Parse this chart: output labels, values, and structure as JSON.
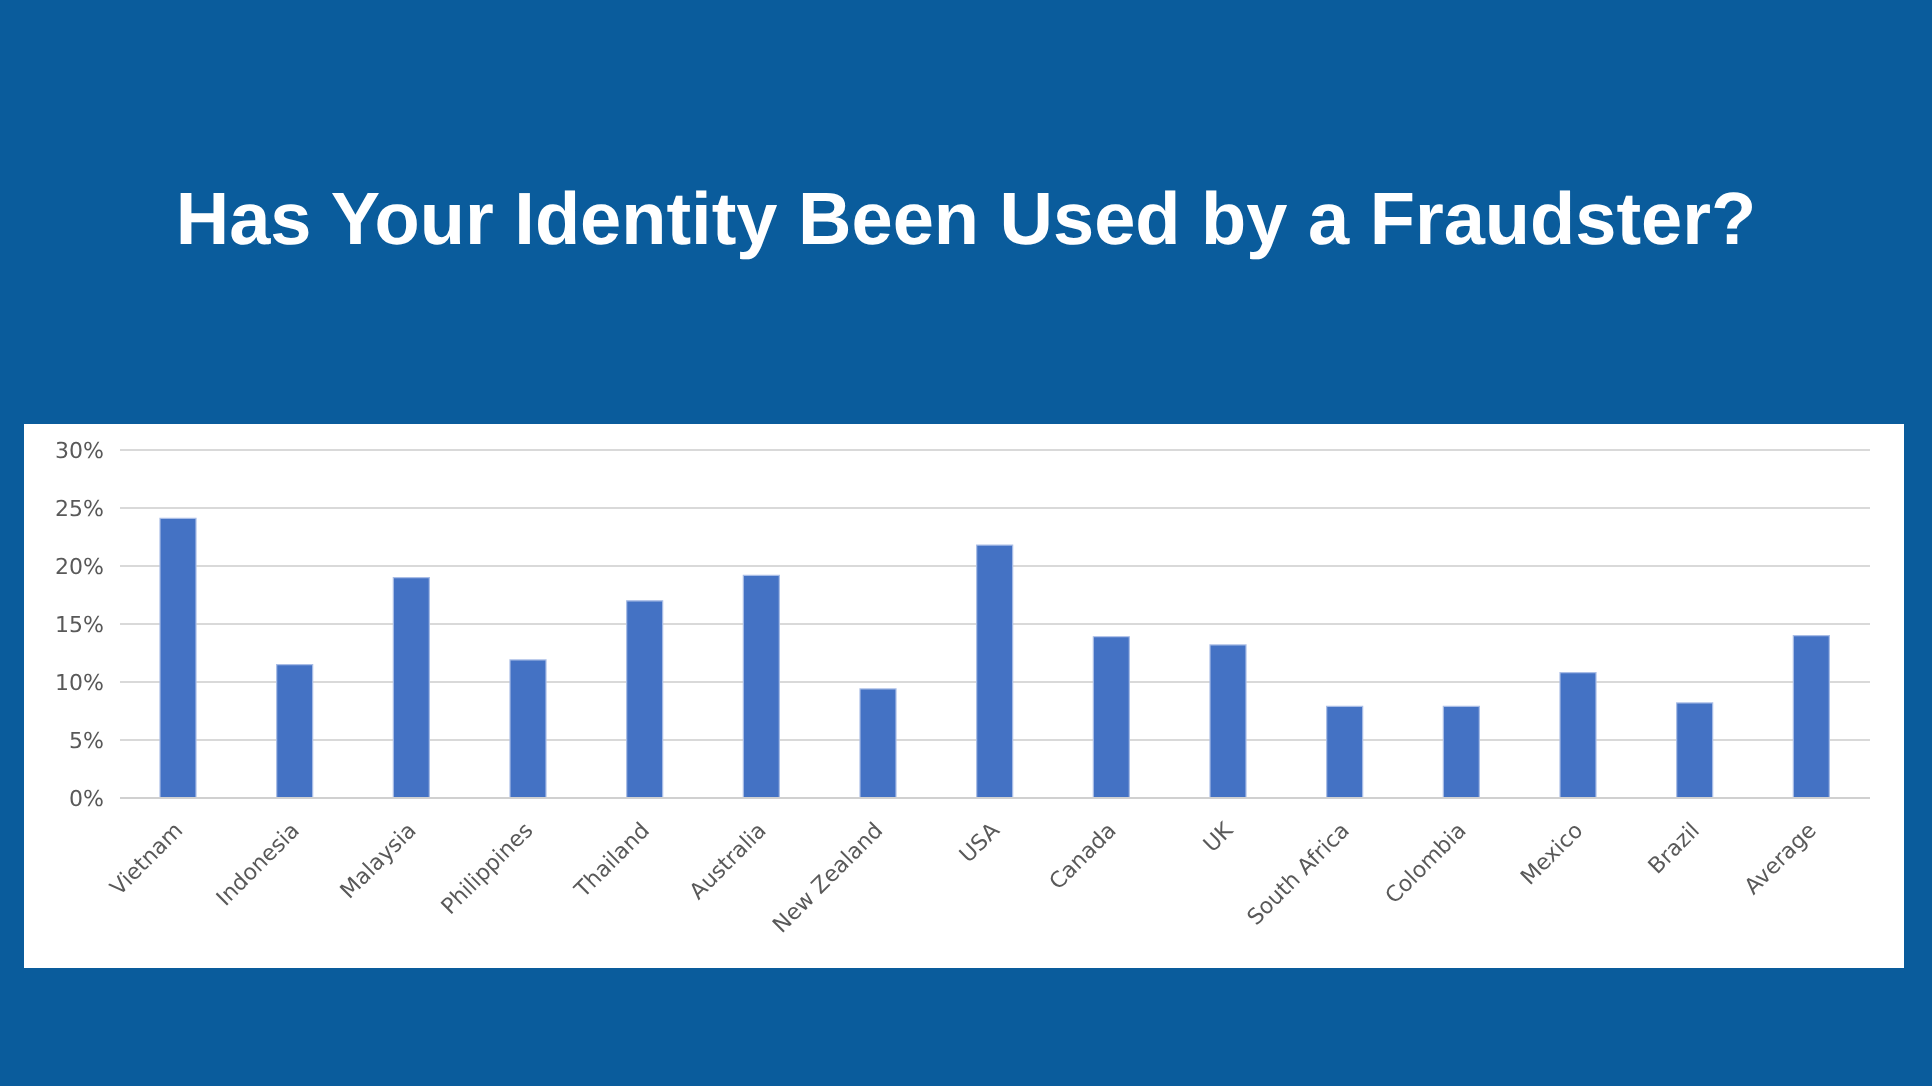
{
  "chart_data": {
    "type": "bar",
    "title": "Has Your Identity Been Used by a Fraudster?",
    "categories": [
      "Vietnam",
      "Indonesia",
      "Malaysia",
      "Philippines",
      "Thailand",
      "Australia",
      "New Zealand",
      "USA",
      "Canada",
      "UK",
      "South Africa",
      "Colombia",
      "Mexico",
      "Brazil",
      "Average"
    ],
    "values": [
      24.1,
      11.5,
      19,
      11.9,
      17,
      19.2,
      9.4,
      21.8,
      13.9,
      13.2,
      7.9,
      7.9,
      10.8,
      8.2,
      14
    ],
    "color": "#4472c4",
    "ylim": [
      0,
      30
    ],
    "yticks": [
      {
        "value": 0,
        "label": "0%"
      },
      {
        "value": 5,
        "label": "5%"
      },
      {
        "value": 10,
        "label": "10%"
      },
      {
        "value": 15,
        "label": "15%"
      },
      {
        "value": 20,
        "label": "20%"
      },
      {
        "value": 25,
        "label": "25%"
      },
      {
        "value": 30,
        "label": "30%"
      }
    ],
    "grid": "y"
  }
}
